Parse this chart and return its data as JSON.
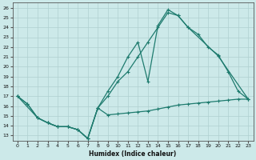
{
  "xlabel": "Humidex (Indice chaleur)",
  "bg_color": "#cce9e9",
  "line_color": "#1e7b6e",
  "grid_color": "#b0d0d0",
  "xlim": [
    -0.5,
    23.5
  ],
  "ylim": [
    12.5,
    26.5
  ],
  "yticks": [
    13,
    14,
    15,
    16,
    17,
    18,
    19,
    20,
    21,
    22,
    23,
    24,
    25,
    26
  ],
  "xticks": [
    0,
    1,
    2,
    3,
    4,
    5,
    6,
    7,
    8,
    9,
    10,
    11,
    12,
    13,
    14,
    15,
    16,
    17,
    18,
    19,
    20,
    21,
    22,
    23
  ],
  "line1_x": [
    0,
    1,
    2,
    3,
    4,
    5,
    6,
    7,
    8,
    9,
    10,
    11,
    12,
    13,
    14,
    15,
    16,
    17,
    18,
    19,
    20,
    21,
    22,
    23
  ],
  "line1_y": [
    17.0,
    16.2,
    14.8,
    14.3,
    13.9,
    13.9,
    13.6,
    12.7,
    15.8,
    15.1,
    15.2,
    15.3,
    15.4,
    15.5,
    15.7,
    15.9,
    16.1,
    16.2,
    16.3,
    16.4,
    16.5,
    16.6,
    16.7,
    16.7
  ],
  "line2_x": [
    0,
    1,
    2,
    3,
    4,
    5,
    6,
    7,
    8,
    9,
    10,
    11,
    12,
    13,
    14,
    15,
    16,
    17,
    18,
    19,
    20,
    21,
    22,
    23
  ],
  "line2_y": [
    17.0,
    16.2,
    14.8,
    14.3,
    13.9,
    13.9,
    13.6,
    12.7,
    15.8,
    17.0,
    18.5,
    19.5,
    21.0,
    22.5,
    24.0,
    25.5,
    25.2,
    24.0,
    23.3,
    22.0,
    21.2,
    19.5,
    17.5,
    16.7
  ],
  "line3_x": [
    0,
    2,
    3,
    4,
    5,
    6,
    7,
    8,
    9,
    10,
    11,
    12,
    13,
    14,
    15,
    16,
    17,
    20,
    23
  ],
  "line3_y": [
    17.0,
    14.8,
    14.3,
    13.9,
    13.9,
    13.6,
    12.7,
    15.8,
    17.5,
    19.0,
    21.0,
    22.5,
    18.5,
    24.2,
    25.8,
    25.2,
    24.0,
    21.1,
    16.7
  ]
}
